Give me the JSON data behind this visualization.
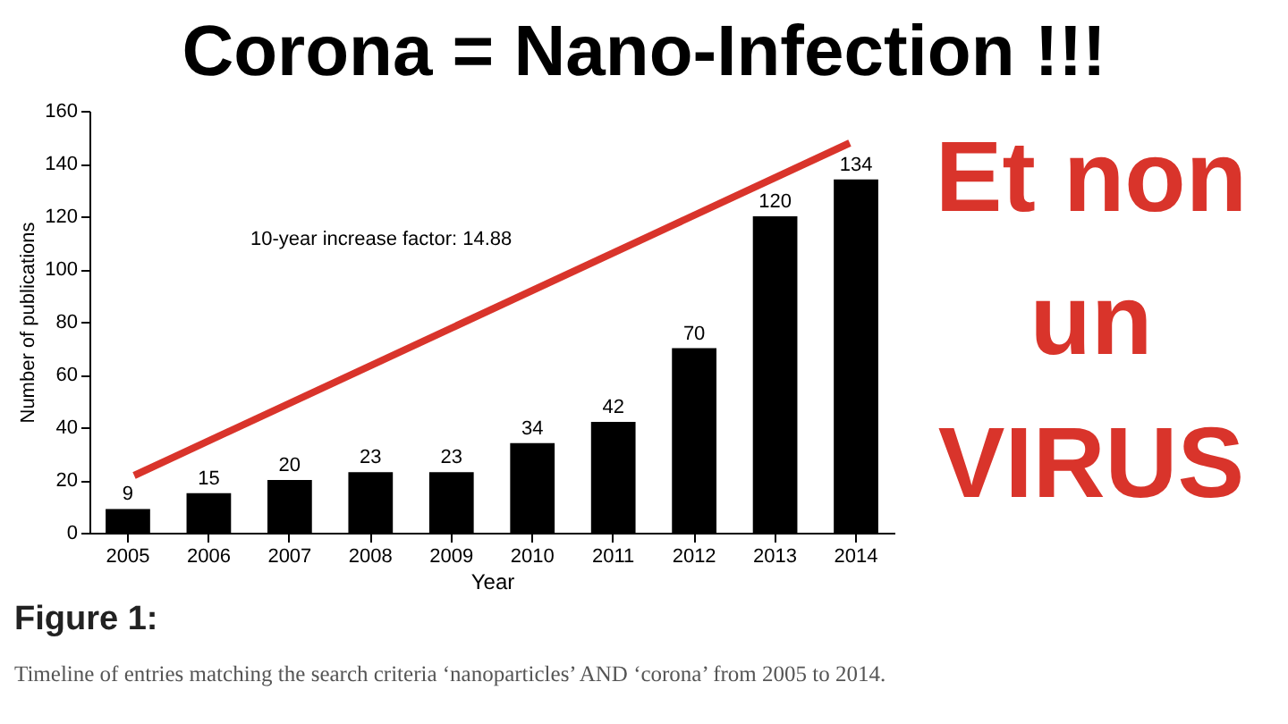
{
  "chart_data": {
    "type": "bar",
    "title": "Corona = Nano-Infection !!!",
    "categories": [
      "2005",
      "2006",
      "2007",
      "2008",
      "2009",
      "2010",
      "2011",
      "2012",
      "2013",
      "2014"
    ],
    "values": [
      9,
      15,
      20,
      23,
      23,
      34,
      42,
      70,
      120,
      134
    ],
    "color": "#000000",
    "ylim": [
      0,
      160
    ],
    "yticks": [
      0,
      20,
      40,
      60,
      80,
      100,
      120,
      140,
      160
    ],
    "xlabel": "Year",
    "ylabel": "Number of publications",
    "data_labels": true,
    "grid": false,
    "annotations": [
      "10-year increase factor: 14.88",
      "Et non\nun\nVIRUS",
      "Figure 1:",
      "Timeline of entries matching the search criteria ‘nanoparticles’ AND ‘corona’ from 2005 to 2014."
    ]
  }
}
